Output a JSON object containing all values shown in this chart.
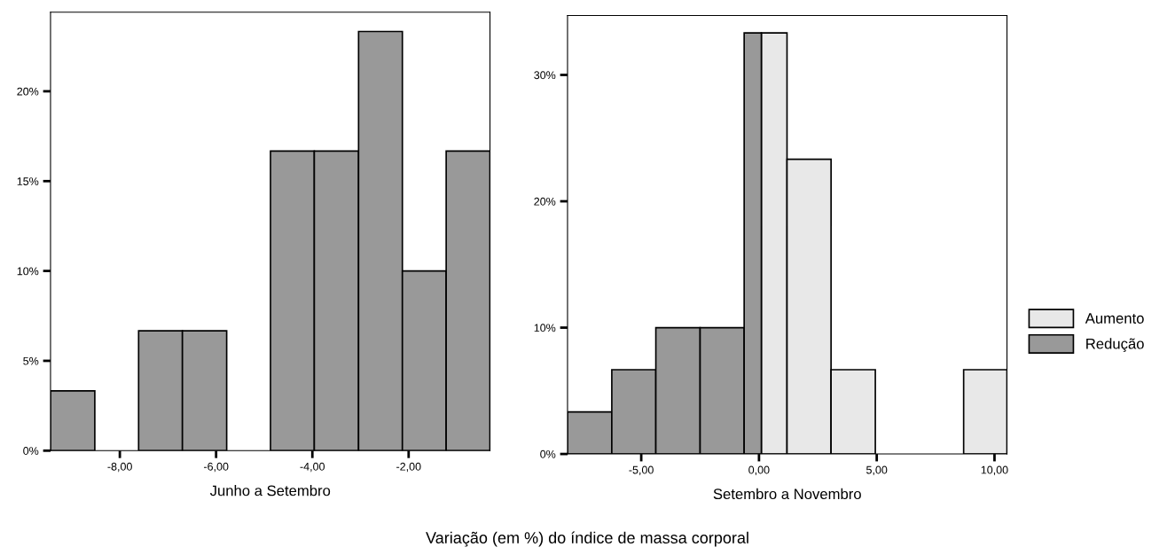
{
  "chart_data": [
    {
      "type": "histogram",
      "xlabel": "Junho a Setembro",
      "annotations": [
        "Variação (em %) do índice de massa corporal"
      ],
      "bins": [
        -9.44,
        -8.52,
        -7.61,
        -6.7,
        -5.78,
        -4.87,
        -3.96,
        -3.04,
        -2.13,
        -1.22,
        -0.31
      ],
      "series": [
        {
          "color": "#999999",
          "values": [
            3.33,
            0,
            6.67,
            6.67,
            0,
            16.67,
            16.67,
            23.33,
            10,
            16.67
          ]
        }
      ],
      "xlim": [
        -9.44,
        -0.31
      ],
      "xticks": [
        {
          "value": -8,
          "label": "-8,00"
        },
        {
          "value": -6,
          "label": "-6,00"
        },
        {
          "value": -4,
          "label": "-4,00"
        },
        {
          "value": -2,
          "label": "-2,00"
        }
      ],
      "ylim": [
        0,
        24.4
      ],
      "yticks": [
        {
          "value": 0,
          "label": "0%"
        },
        {
          "value": 5,
          "label": "5%"
        },
        {
          "value": 10,
          "label": "10%"
        },
        {
          "value": 15,
          "label": "15%"
        },
        {
          "value": 20,
          "label": "20%"
        }
      ]
    },
    {
      "type": "histogram",
      "xlabel": "Setembro a Novembro",
      "legend": "right",
      "bins": [
        -8.13,
        -6.25,
        -4.38,
        -2.5,
        -0.63,
        0.1,
        1.19,
        3.06,
        4.94,
        8.69,
        10.53
      ],
      "series": [
        {
          "name": "Aumento",
          "color": "#e8e8e8",
          "values": [
            null,
            null,
            null,
            null,
            null,
            33.33,
            23.33,
            6.67,
            0,
            6.67
          ]
        },
        {
          "name": "Redução",
          "color": "#999999",
          "values": [
            3.33,
            6.67,
            10,
            10,
            33.33,
            null,
            null,
            null,
            null,
            null
          ]
        }
      ],
      "xlim": [
        -8.13,
        10.53
      ],
      "xticks": [
        {
          "value": -5,
          "label": "-5,00"
        },
        {
          "value": 0,
          "label": "0,00"
        },
        {
          "value": 5,
          "label": "5,00"
        },
        {
          "value": 10,
          "label": "10,00"
        }
      ],
      "ylim": [
        0,
        34.7
      ],
      "yticks": [
        {
          "value": 0,
          "label": "0%"
        },
        {
          "value": 10,
          "label": "10%"
        },
        {
          "value": 20,
          "label": "20%"
        },
        {
          "value": 30,
          "label": "30%"
        }
      ]
    }
  ]
}
